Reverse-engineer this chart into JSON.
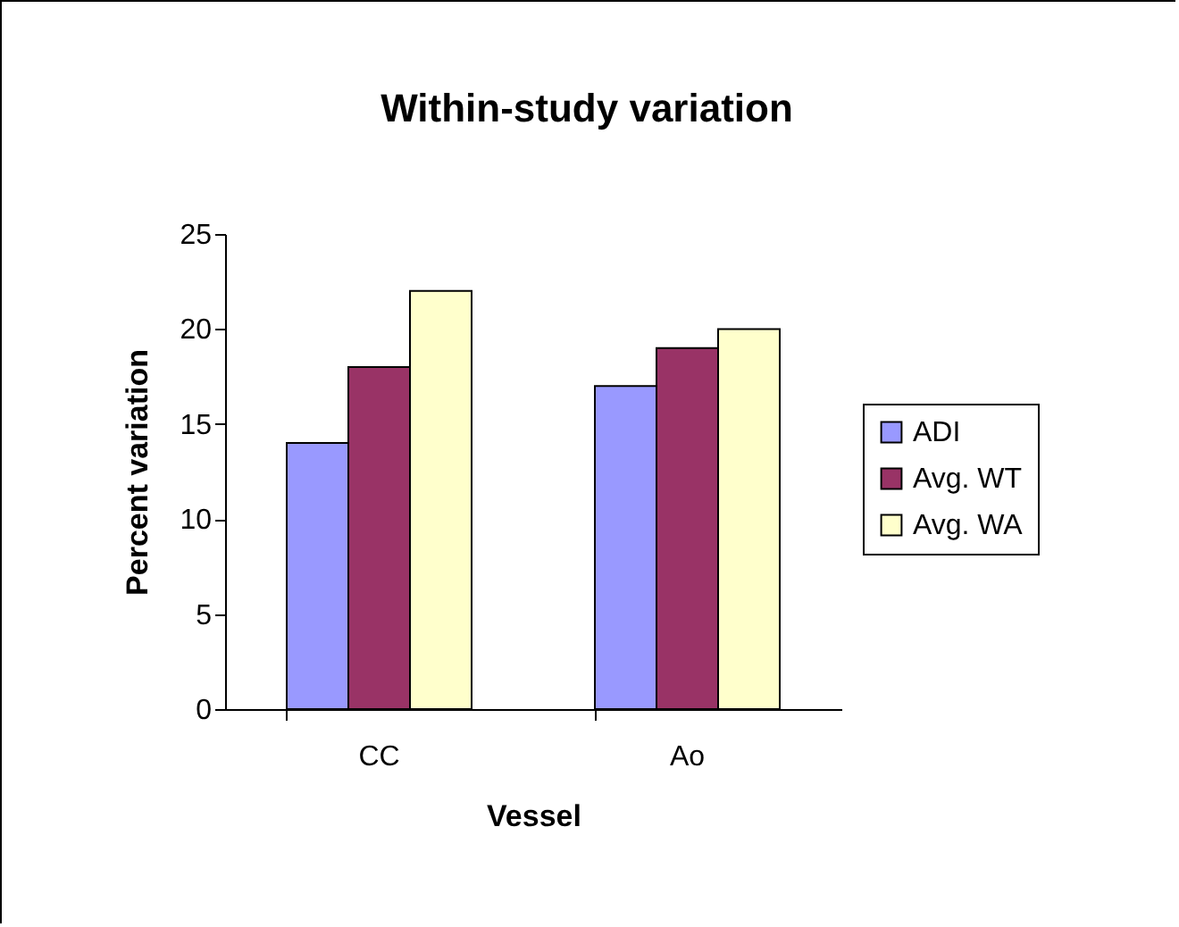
{
  "chart_data": {
    "type": "bar",
    "title": "Within-study variation",
    "xlabel": "Vessel",
    "ylabel": "Percent variation",
    "categories": [
      "CC",
      "Ao"
    ],
    "series": [
      {
        "name": "ADI",
        "color": "#9999ff",
        "values": [
          14,
          17
        ]
      },
      {
        "name": "Avg. WT",
        "color": "#993366",
        "values": [
          18,
          19
        ]
      },
      {
        "name": "Avg. WA",
        "color": "#ffffcc",
        "values": [
          22,
          20
        ]
      }
    ],
    "ylim": [
      0,
      25
    ],
    "yticks": [
      0,
      5,
      10,
      15,
      20,
      25
    ],
    "grid": false,
    "legend": "right"
  }
}
